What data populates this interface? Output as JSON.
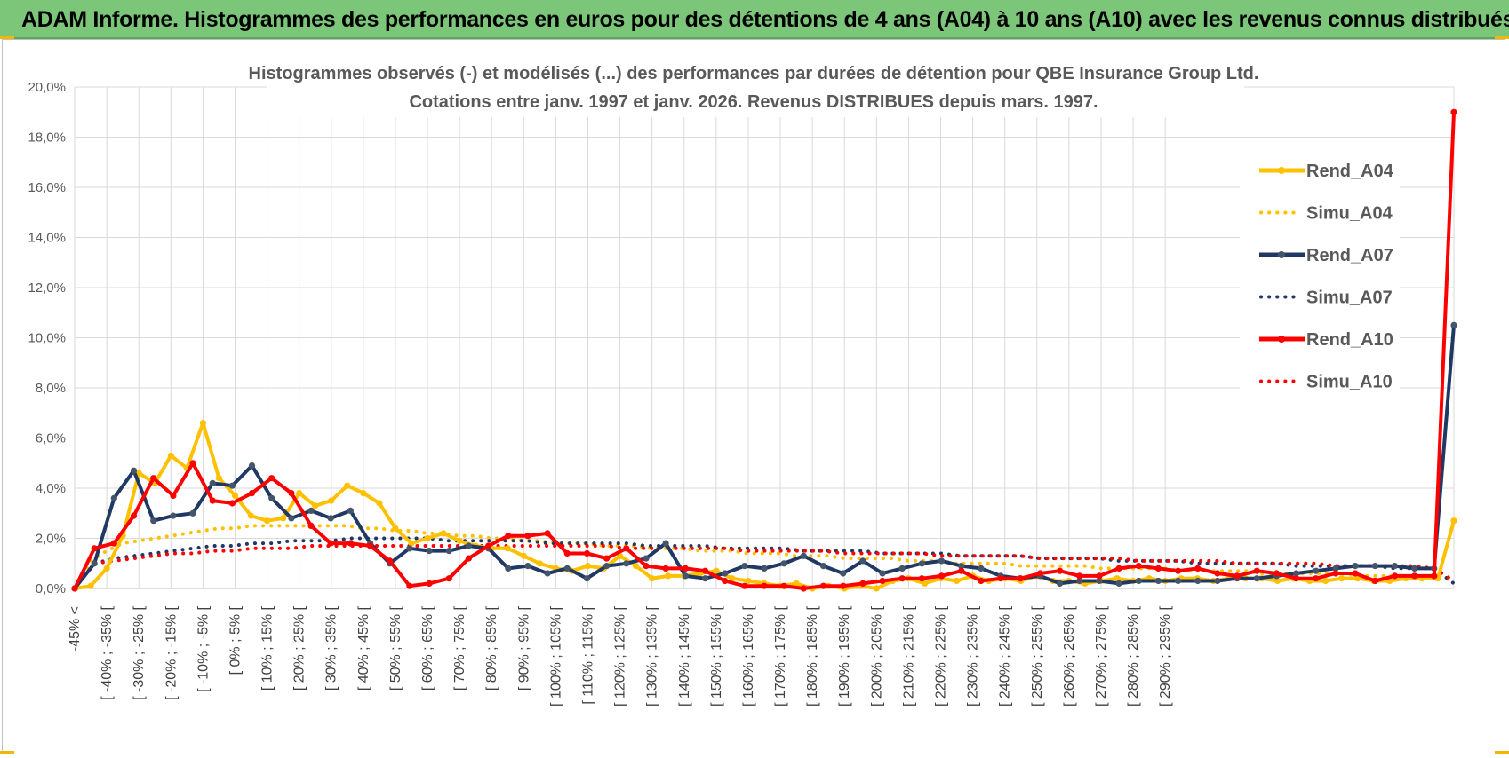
{
  "banner": {
    "title": "ADAM Informe. Histogrammes des performances en euros pour des détentions de 4 ans (A04) à 10 ans (A10) avec les revenus connus distribués"
  },
  "colors": {
    "banner_bg": "#7cc67a",
    "A04": "#ffc000",
    "A07": "#1f3864",
    "A10": "#ff0000",
    "A07_marker": "#44546a",
    "grid": "#d9d9d9"
  },
  "chart_data": {
    "type": "line",
    "title_line1": "Histogrammes observés (-) et modélisés (...) des performances par durées de détention pour QBE Insurance Group Ltd.",
    "title_line2": "Cotations entre janv. 1997 et janv. 2026. Revenus DISTRIBUES depuis mars. 1997.",
    "xlabel": "",
    "ylabel": "",
    "ylim": [
      0,
      20
    ],
    "y_ticks": [
      "0,0%",
      "2,0%",
      "4,0%",
      "6,0%",
      "8,0%",
      "10,0%",
      "12,0%",
      "14,0%",
      "16,0%",
      "18,0%",
      "20,0%"
    ],
    "grid": true,
    "legend_position": "right",
    "x_tick_labels": [
      "-45% <",
      "[ -40% ; -35% [",
      "[ -30% ; -25% [",
      "[ -20% ; -15% [",
      "[ -10% ; -5% [",
      "[ 0% ; 5% [",
      "[ 10% ; 15% [",
      "[ 20% ; 25% [",
      "[ 30% ; 35% [",
      "[ 40% ; 45% [",
      "[ 50% ; 55% [",
      "[ 60% ; 65% [",
      "[ 70% ; 75% [",
      "[ 80% ; 85% [",
      "[ 90% ; 95% [",
      "[ 100% ; 105% [",
      "[ 110% ; 115% [",
      "[ 120% ; 125% [",
      "[ 130% ; 135% [",
      "[ 140% ; 145% [",
      "[ 150% ; 155% [",
      "[ 160% ; 165% [",
      "[ 170% ; 175% [",
      "[ 180% ; 185% [",
      "[ 190% ; 195% [",
      "[ 200% ; 205% [",
      "[ 210% ; 215% [",
      "[ 220% ; 225% [",
      "[ 230% ; 235% [",
      "[ 240% ; 245% [",
      "[ 250% ; 255% [",
      "[ 260% ; 265% [",
      "[ 270% ; 275% [",
      "[ 280% ; 285% [",
      "[ 290% ; 295% ["
    ],
    "series": [
      {
        "name": "Rend_A04",
        "style": "solid",
        "color": "#ffc000",
        "values": [
          0.0,
          0.1,
          0.8,
          2.1,
          4.6,
          4.2,
          5.3,
          4.8,
          6.6,
          4.4,
          3.7,
          2.9,
          2.7,
          2.8,
          3.8,
          3.3,
          3.5,
          4.1,
          3.8,
          3.4,
          2.4,
          1.8,
          2.0,
          2.2,
          1.9,
          1.7,
          1.6,
          1.6,
          1.3,
          1.0,
          0.8,
          0.7,
          0.9,
          0.8,
          1.3,
          0.9,
          0.4,
          0.5,
          0.5,
          0.6,
          0.7,
          0.4,
          0.3,
          0.2,
          0.1,
          0.2,
          0.0,
          0.1,
          0.0,
          0.1,
          0.0,
          0.3,
          0.4,
          0.2,
          0.4,
          0.3,
          0.5,
          0.3,
          0.4,
          0.3,
          0.5,
          0.3,
          0.3,
          0.2,
          0.3,
          0.4,
          0.3,
          0.4,
          0.3,
          0.4,
          0.4,
          0.3,
          0.4,
          0.4,
          0.4,
          0.3,
          0.4,
          0.3,
          0.3,
          0.4,
          0.4,
          0.3,
          0.3,
          0.4,
          0.4,
          0.4,
          2.7
        ]
      },
      {
        "name": "Simu_A04",
        "style": "dotted",
        "color": "#ffc000",
        "values": [
          0.0,
          1.1,
          1.5,
          1.8,
          1.9,
          2.0,
          2.1,
          2.2,
          2.3,
          2.4,
          2.4,
          2.5,
          2.5,
          2.5,
          2.5,
          2.5,
          2.5,
          2.5,
          2.4,
          2.4,
          2.3,
          2.3,
          2.2,
          2.2,
          2.1,
          2.1,
          2.0,
          2.0,
          1.9,
          1.9,
          1.8,
          1.8,
          1.8,
          1.7,
          1.7,
          1.7,
          1.6,
          1.6,
          1.6,
          1.5,
          1.5,
          1.5,
          1.4,
          1.4,
          1.4,
          1.3,
          1.3,
          1.3,
          1.2,
          1.2,
          1.2,
          1.2,
          1.1,
          1.1,
          1.1,
          1.0,
          1.0,
          1.0,
          1.0,
          0.9,
          0.9,
          0.9,
          0.9,
          0.9,
          0.8,
          0.8,
          0.8,
          0.8,
          0.8,
          0.7,
          0.7,
          0.7,
          0.7,
          0.7,
          0.6,
          0.6,
          0.6,
          0.6,
          0.6,
          0.6,
          0.5,
          0.5,
          0.5,
          0.5,
          0.5,
          0.5,
          0.3
        ]
      },
      {
        "name": "Rend_A07",
        "style": "solid",
        "color": "#1f3864",
        "values": [
          0.0,
          1.0,
          3.6,
          4.7,
          2.7,
          2.9,
          3.0,
          4.2,
          4.1,
          4.9,
          3.6,
          2.8,
          3.1,
          2.8,
          3.1,
          1.8,
          1.0,
          1.6,
          1.5,
          1.5,
          1.7,
          1.6,
          0.8,
          0.9,
          0.6,
          0.8,
          0.4,
          0.9,
          1.0,
          1.2,
          1.8,
          0.5,
          0.4,
          0.6,
          0.9,
          0.8,
          1.0,
          1.3,
          0.9,
          0.6,
          1.1,
          0.6,
          0.8,
          1.0,
          1.1,
          0.9,
          0.8,
          0.5,
          0.4,
          0.5,
          0.2,
          0.3,
          0.3,
          0.2,
          0.3,
          0.3,
          0.3,
          0.3,
          0.3,
          0.4,
          0.4,
          0.5,
          0.6,
          0.7,
          0.8,
          0.9,
          0.9,
          0.9,
          0.8,
          0.8,
          10.5
        ]
      },
      {
        "name": "Simu_A07",
        "style": "dotted",
        "color": "#1f3864",
        "values": [
          0.0,
          1.0,
          1.2,
          1.3,
          1.4,
          1.5,
          1.6,
          1.7,
          1.7,
          1.8,
          1.8,
          1.9,
          1.9,
          1.9,
          2.0,
          2.0,
          2.0,
          2.0,
          2.0,
          1.9,
          1.9,
          1.9,
          1.9,
          1.9,
          1.8,
          1.8,
          1.8,
          1.8,
          1.8,
          1.7,
          1.7,
          1.7,
          1.7,
          1.6,
          1.6,
          1.6,
          1.6,
          1.5,
          1.5,
          1.5,
          1.5,
          1.4,
          1.4,
          1.4,
          1.4,
          1.3,
          1.3,
          1.3,
          1.3,
          1.2,
          1.2,
          1.2,
          1.2,
          1.1,
          1.1,
          1.1,
          1.1,
          1.0,
          1.0,
          1.0,
          1.0,
          1.0,
          0.9,
          0.9,
          0.9,
          0.9,
          0.9,
          0.8,
          0.8,
          0.8,
          0.2
        ]
      },
      {
        "name": "Rend_A10",
        "style": "solid",
        "color": "#ff0000",
        "values": [
          0.0,
          1.6,
          1.8,
          2.9,
          4.4,
          3.7,
          5.0,
          3.5,
          3.4,
          3.8,
          4.4,
          3.8,
          2.5,
          1.8,
          1.8,
          1.7,
          1.1,
          0.1,
          0.2,
          0.4,
          1.2,
          1.7,
          2.1,
          2.1,
          2.2,
          1.4,
          1.4,
          1.2,
          1.6,
          0.9,
          0.8,
          0.8,
          0.7,
          0.3,
          0.1,
          0.1,
          0.1,
          0.0,
          0.1,
          0.1,
          0.2,
          0.3,
          0.4,
          0.4,
          0.5,
          0.7,
          0.3,
          0.4,
          0.4,
          0.6,
          0.7,
          0.5,
          0.5,
          0.8,
          0.9,
          0.8,
          0.7,
          0.8,
          0.6,
          0.5,
          0.7,
          0.6,
          0.4,
          0.4,
          0.6,
          0.6,
          0.3,
          0.5,
          0.5,
          0.5,
          19.0
        ]
      },
      {
        "name": "Simu_A10",
        "style": "dotted",
        "color": "#ff0000",
        "values": [
          0.0,
          1.0,
          1.1,
          1.2,
          1.3,
          1.4,
          1.4,
          1.5,
          1.5,
          1.6,
          1.6,
          1.6,
          1.7,
          1.7,
          1.7,
          1.7,
          1.7,
          1.7,
          1.7,
          1.7,
          1.7,
          1.7,
          1.7,
          1.7,
          1.7,
          1.7,
          1.7,
          1.7,
          1.6,
          1.6,
          1.6,
          1.6,
          1.6,
          1.6,
          1.5,
          1.5,
          1.5,
          1.5,
          1.5,
          1.4,
          1.4,
          1.4,
          1.4,
          1.4,
          1.3,
          1.3,
          1.3,
          1.3,
          1.3,
          1.2,
          1.2,
          1.2,
          1.2,
          1.2,
          1.1,
          1.1,
          1.1,
          1.1,
          1.1,
          1.0,
          1.0,
          1.0,
          1.0,
          1.0,
          0.9,
          0.9,
          0.9,
          0.9,
          0.9,
          0.8,
          0.3
        ]
      }
    ]
  }
}
